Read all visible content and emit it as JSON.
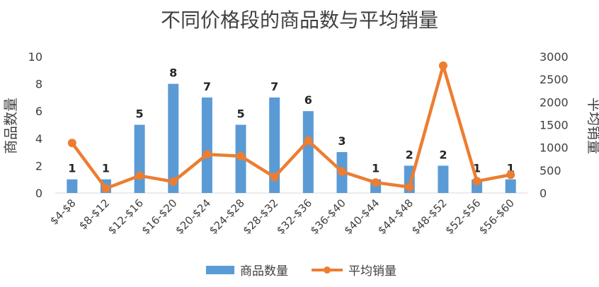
{
  "chart_data": {
    "type": "bar",
    "title": "不同价格段的商品数与平均销量",
    "ylabel": "商品数量",
    "y2label": "平均销量",
    "categories": [
      "$4-$8",
      "$8-$12",
      "$12-$16",
      "$16-$20",
      "$20-$24",
      "$24-$28",
      "$28-$32",
      "$32-$36",
      "$36-$40",
      "$40-$44",
      "$44-$48",
      "$48-$52",
      "$52-$56",
      "$56-$60"
    ],
    "series": [
      {
        "name": "商品数量",
        "type": "bar",
        "axis": "left",
        "color": "#5B9BD5",
        "values": [
          1,
          1,
          5,
          8,
          7,
          5,
          7,
          6,
          3,
          1,
          2,
          2,
          1,
          1
        ],
        "data_labels": [
          "1",
          "1",
          "5",
          "8",
          "7",
          "5",
          "7",
          "6",
          "3",
          "1",
          "2",
          "2",
          "1",
          "1"
        ]
      },
      {
        "name": "平均销量",
        "type": "line",
        "axis": "right",
        "color": "#ED7D31",
        "values": [
          1100,
          100,
          380,
          250,
          850,
          810,
          350,
          1150,
          470,
          230,
          130,
          2800,
          260,
          400
        ]
      }
    ],
    "ylim": [
      0,
      10
    ],
    "y2lim": [
      0,
      3000
    ],
    "yticks": [
      "0",
      "2",
      "4",
      "6",
      "8",
      "10"
    ],
    "y2ticks": [
      "0",
      "500",
      "1000",
      "1500",
      "2000",
      "2500",
      "3000"
    ],
    "grid": false,
    "legend": "bottom"
  }
}
